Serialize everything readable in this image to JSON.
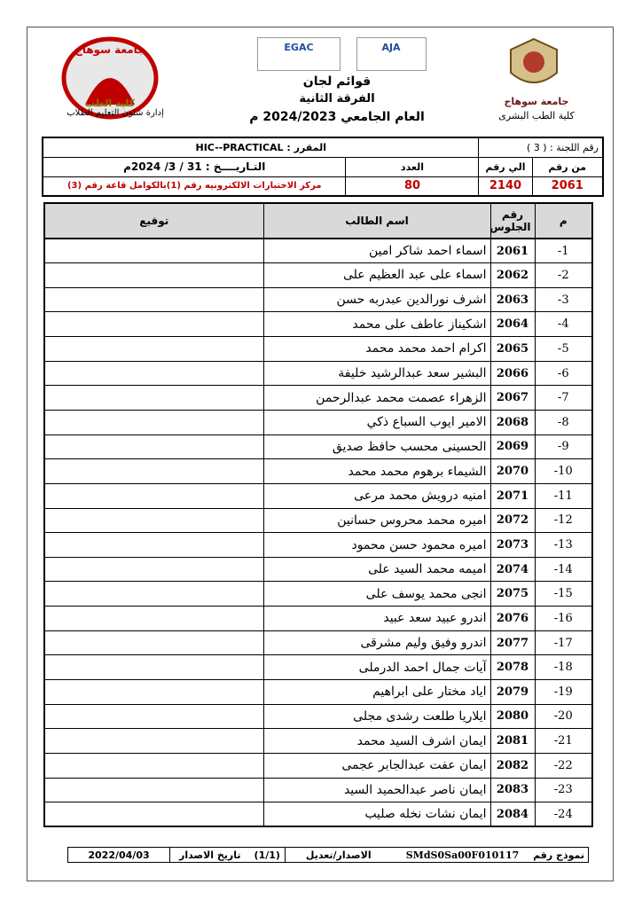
{
  "header": {
    "logo_left_top": "جامعة سوهاج",
    "logo_left_bottom": "كلية الطب",
    "department": "إدارة شئون التعليم الطلاب",
    "accreditation": [
      "EGAC",
      "AJA"
    ],
    "title": "قوائم لجان",
    "level": "الفرقة الثانية",
    "year": "العام الجامعي 2024/2023 م",
    "university": "جامعة سوهاج",
    "faculty": "كلية الطب البشرى"
  },
  "info": {
    "committee": "رقم اللجنة : ( 3 )",
    "course": "المقرر : HIC--PRACTICAL",
    "from_label": "من رقم",
    "to_label": "الي رقم",
    "count_label": "العدد",
    "date": "التـاريــــخ : 31 / 3/ 2024م",
    "from": 2061,
    "to": 2140,
    "count": 80,
    "location": "مركز الاختبارات الالكترونيه رقم (1)بالكوامل قاعة رقم (3)"
  },
  "table": {
    "columns": [
      "م",
      "رقم الجلوس",
      "اسم الطالب",
      "توقيع"
    ],
    "rows": [
      [
        "1-",
        2061,
        "اسماء احمد شاكر امين"
      ],
      [
        "2-",
        2062,
        "اسماء على عبد العظيم على"
      ],
      [
        "3-",
        2063,
        "اشرف نورالدين عبدربه حسن"
      ],
      [
        "4-",
        2064,
        "اشكيناز عاطف على محمد"
      ],
      [
        "5-",
        2065,
        "اكرام احمد محمد محمد"
      ],
      [
        "6-",
        2066,
        "البشير سعد عبدالرشيد خليفة"
      ],
      [
        "7-",
        2067,
        "الزهراء عصمت محمد عبدالرحمن"
      ],
      [
        "8-",
        2068,
        "الامير ايوب السباع ذكي"
      ],
      [
        "9-",
        2069,
        "الحسينى محسب حافظ صديق"
      ],
      [
        "10-",
        2070,
        "الشيماء برهوم محمد محمد"
      ],
      [
        "11-",
        2071,
        "امنيه درويش محمد مرعى"
      ],
      [
        "12-",
        2072,
        "اميره محمد محروس حسانين"
      ],
      [
        "13-",
        2073,
        "اميره محمود حسن محمود"
      ],
      [
        "14-",
        2074,
        "اميمه محمد السيد على"
      ],
      [
        "15-",
        2075,
        "انجى محمد يوسف على"
      ],
      [
        "16-",
        2076,
        "اندرو عبيد سعد عبيد"
      ],
      [
        "17-",
        2077,
        "اندرو وفيق وليم مشرقى"
      ],
      [
        "18-",
        2078,
        "آيات جمال احمد الدرملى"
      ],
      [
        "19-",
        2079,
        "اياد مختار على ابراهيم"
      ],
      [
        "20-",
        2080,
        "ايلاريا طلعت رشدى مجلى"
      ],
      [
        "21-",
        2081,
        "ايمان اشرف السيد محمد"
      ],
      [
        "22-",
        2082,
        "ايمان عفت عبدالجابر عجمى"
      ],
      [
        "23-",
        2083,
        "ايمان ناصر عبدالحميد السيد"
      ],
      [
        "24-",
        2084,
        "ايمان نشات نخله صليب"
      ]
    ]
  },
  "footer": {
    "form_label": "نموذج رقم",
    "form_code": "SMdS0Sa00F010117",
    "version_label": "الاصدار/تعديل",
    "version": "(1/1)",
    "issue_label": "تاريخ الاصدار",
    "issue_date": "2022/04/03"
  }
}
